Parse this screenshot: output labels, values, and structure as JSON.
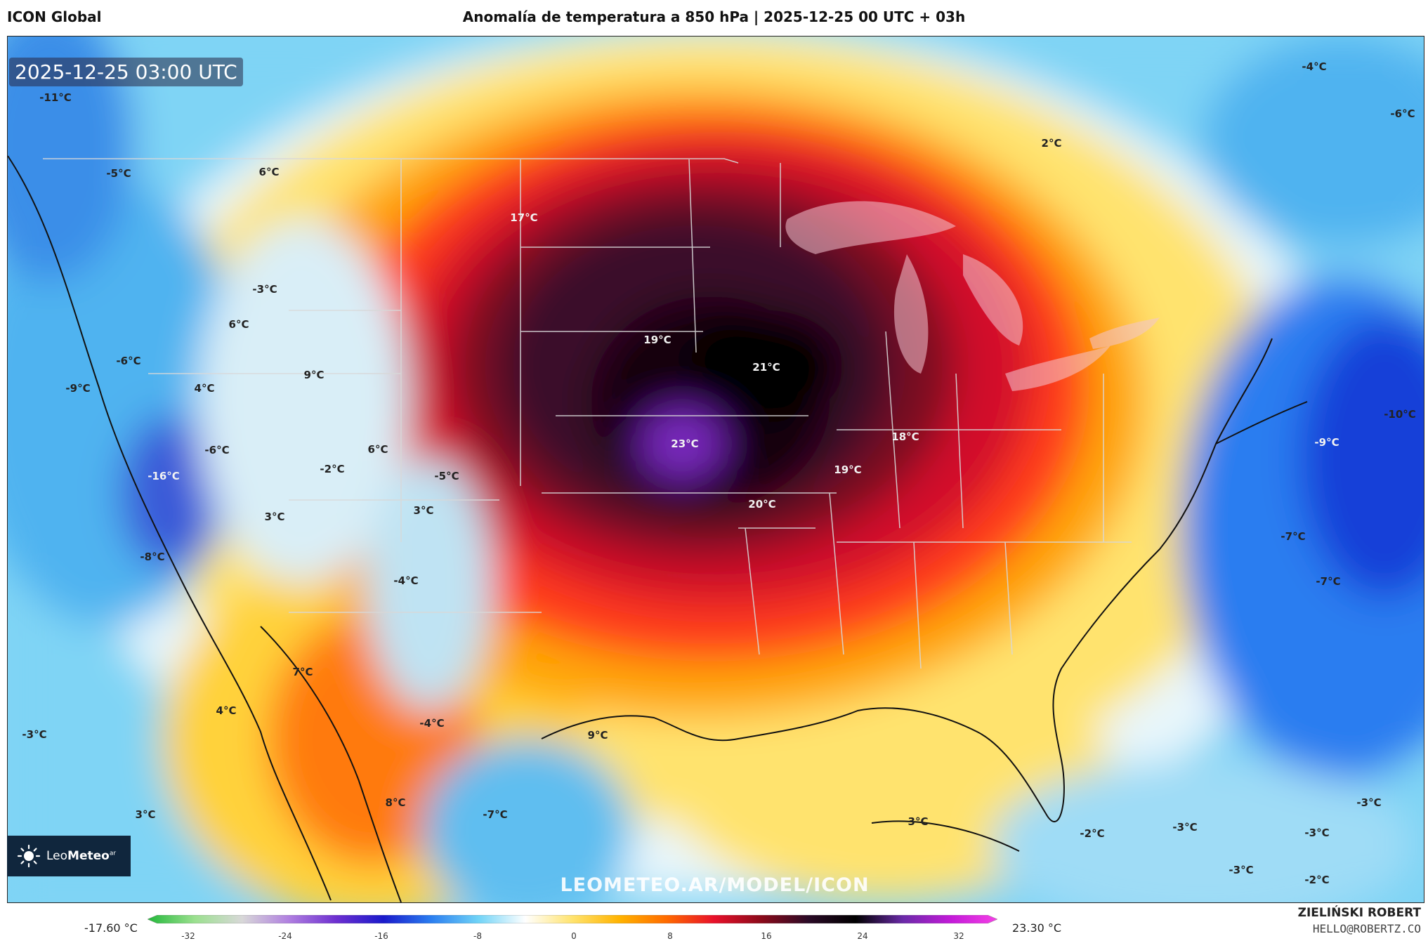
{
  "header": {
    "model_name": "ICON Global",
    "title": "Anomalía de temperatura a 850 hPa | 2025-12-25 00 UTC + 03h"
  },
  "map": {
    "timestamp": "2025-12-25 03:00 UTC",
    "watermark": "LEOMETEO.AR/MODEL/ICON",
    "labels": [
      {
        "text": "-11°C",
        "tone": "dark"
      },
      {
        "text": "-5°C",
        "tone": "dark"
      },
      {
        "text": "6°C",
        "tone": "dark"
      },
      {
        "text": "17°C",
        "tone": "light"
      },
      {
        "text": "2°C",
        "tone": "dark"
      },
      {
        "text": "-4°C",
        "tone": "dark"
      },
      {
        "text": "-6°C",
        "tone": "dark"
      },
      {
        "text": "-3°C",
        "tone": "dark"
      },
      {
        "text": "6°C",
        "tone": "dark"
      },
      {
        "text": "-6°C",
        "tone": "dark"
      },
      {
        "text": "-9°C",
        "tone": "dark"
      },
      {
        "text": "4°C",
        "tone": "dark"
      },
      {
        "text": "9°C",
        "tone": "dark"
      },
      {
        "text": "19°C",
        "tone": "light"
      },
      {
        "text": "21°C",
        "tone": "light"
      },
      {
        "text": "-6°C",
        "tone": "dark"
      },
      {
        "text": "6°C",
        "tone": "dark"
      },
      {
        "text": "-2°C",
        "tone": "dark"
      },
      {
        "text": "-16°C",
        "tone": "light"
      },
      {
        "text": "-5°C",
        "tone": "dark"
      },
      {
        "text": "23°C",
        "tone": "light"
      },
      {
        "text": "18°C",
        "tone": "light"
      },
      {
        "text": "19°C",
        "tone": "light"
      },
      {
        "text": "20°C",
        "tone": "light"
      },
      {
        "text": "-10°C",
        "tone": "dark"
      },
      {
        "text": "-9°C",
        "tone": "light"
      },
      {
        "text": "3°C",
        "tone": "dark"
      },
      {
        "text": "3°C",
        "tone": "dark"
      },
      {
        "text": "-8°C",
        "tone": "dark"
      },
      {
        "text": "-4°C",
        "tone": "dark"
      },
      {
        "text": "-7°C",
        "tone": "dark"
      },
      {
        "text": "-7°C",
        "tone": "dark"
      },
      {
        "text": "7°C",
        "tone": "dark"
      },
      {
        "text": "4°C",
        "tone": "dark"
      },
      {
        "text": "-3°C",
        "tone": "dark"
      },
      {
        "text": "-4°C",
        "tone": "dark"
      },
      {
        "text": "9°C",
        "tone": "dark"
      },
      {
        "text": "8°C",
        "tone": "dark"
      },
      {
        "text": "-7°C",
        "tone": "dark"
      },
      {
        "text": "3°C",
        "tone": "dark"
      },
      {
        "text": "3°C",
        "tone": "dark"
      },
      {
        "text": "-3°C",
        "tone": "dark"
      },
      {
        "text": "-2°C",
        "tone": "dark"
      },
      {
        "text": "-3°C",
        "tone": "dark"
      },
      {
        "text": "-3°C",
        "tone": "dark"
      },
      {
        "text": "-3°C",
        "tone": "dark"
      },
      {
        "text": "-2°C",
        "tone": "dark"
      }
    ]
  },
  "logo": {
    "brand_light": "Leo",
    "brand_bold": "Meteo",
    "suffix": "ar"
  },
  "legend": {
    "min_label": "-17.60 °C",
    "max_label": "23.30 °C",
    "ticks": [
      "-32",
      "-24",
      "-16",
      "-8",
      "0",
      "8",
      "16",
      "24",
      "32"
    ],
    "colors": [
      "#22b83a",
      "#9be08f",
      "#d8d8d8",
      "#b07fe0",
      "#6d2fd0",
      "#1a1acb",
      "#2a7df0",
      "#6fd3f7",
      "#ffffff",
      "#ffe36e",
      "#ffb300",
      "#ff6a00",
      "#e8102a",
      "#8b0a1a",
      "#2a0a26",
      "#000000",
      "#6a2aa8",
      "#c21ad8",
      "#f53fe6"
    ]
  },
  "author": {
    "name": "ZIELIŃSKI ROBERT",
    "email": "HELLO@ROBERTZ.CO"
  }
}
